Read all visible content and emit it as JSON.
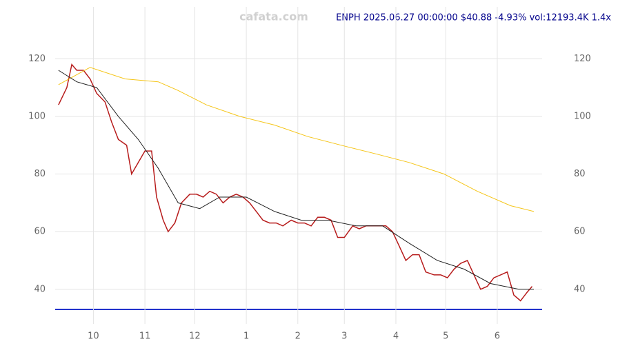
{
  "chart_data": {
    "type": "line",
    "title": "ENPH 2025.06.27 00:00:00 $40.88 -4.93% vol:12193.4K 1.4x",
    "watermark": "cafata.com",
    "xlim": [
      -23,
      270
    ],
    "ylim": [
      28,
      138
    ],
    "yticks": [
      40,
      60,
      80,
      100,
      120
    ],
    "xticks": [
      {
        "value": 0,
        "label": "10"
      },
      {
        "value": 31,
        "label": "11"
      },
      {
        "value": 61,
        "label": "12"
      },
      {
        "value": 92,
        "label": "1"
      },
      {
        "value": 123,
        "label": "2"
      },
      {
        "value": 151,
        "label": "3"
      },
      {
        "value": 182,
        "label": "4"
      },
      {
        "value": 212,
        "label": "5"
      },
      {
        "value": 243,
        "label": "6"
      }
    ],
    "grid": true,
    "series": [
      {
        "name": "close",
        "color": "#b71c1c",
        "x": [
          -21,
          -16,
          -13,
          -10,
          -6,
          -2,
          2,
          7,
          11,
          15,
          20,
          23,
          27,
          31,
          35,
          38,
          42,
          45,
          49,
          53,
          58,
          62,
          66,
          70,
          74,
          78,
          82,
          86,
          90,
          94,
          98,
          102,
          106,
          110,
          114,
          119,
          123,
          127,
          131,
          135,
          139,
          143,
          147,
          151,
          156,
          160,
          164,
          168,
          172,
          176,
          180,
          184,
          188,
          192,
          196,
          200,
          205,
          209,
          213,
          217,
          221,
          225,
          229,
          233,
          237,
          241,
          245,
          249,
          253,
          257,
          261,
          264
        ],
        "values": [
          104,
          110,
          118,
          116,
          116,
          113,
          108,
          105,
          98,
          92,
          90,
          80,
          84,
          88,
          88,
          72,
          64,
          60,
          63,
          70,
          73,
          73,
          72,
          74,
          73,
          70,
          72,
          73,
          72,
          70,
          67,
          64,
          63,
          63,
          62,
          64,
          63,
          63,
          62,
          65,
          65,
          64,
          58,
          58,
          62,
          61,
          62,
          62,
          62,
          62,
          60,
          55,
          50,
          52,
          52,
          46,
          45,
          45,
          44,
          47,
          49,
          50,
          45,
          40,
          41,
          44,
          45,
          46,
          38,
          36,
          39,
          41
        ]
      },
      {
        "name": "ma-long",
        "color": "#f5c518",
        "x": [
          -21,
          -2,
          19,
          39,
          51,
          68,
          88,
          109,
          129,
          149,
          170,
          190,
          211,
          231,
          251,
          265
        ],
        "values": [
          111,
          117,
          113,
          112,
          109,
          104,
          100,
          97,
          93,
          90,
          87,
          84,
          80,
          74,
          69,
          67
        ]
      },
      {
        "name": "ma-short",
        "color": "#222222",
        "x": [
          -21,
          -10,
          2,
          15,
          27,
          39,
          51,
          64,
          76,
          92,
          109,
          125,
          141,
          158,
          174,
          190,
          207,
          223,
          239,
          256,
          265
        ],
        "values": [
          116,
          112,
          110,
          100,
          92,
          82,
          70,
          68,
          72,
          72,
          67,
          64,
          64,
          62,
          62,
          56,
          50,
          47,
          42,
          40,
          40
        ]
      }
    ]
  }
}
